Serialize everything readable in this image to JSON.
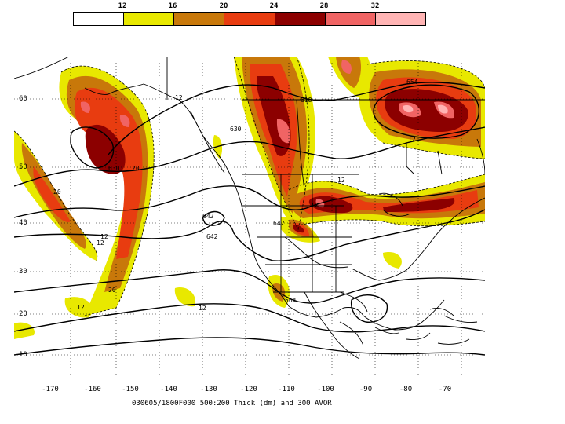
{
  "colorbar": {
    "labels": [
      "12",
      "16",
      "20",
      "24",
      "28",
      "32"
    ],
    "colors": [
      "#ffffff",
      "#e8e800",
      "#c8780a",
      "#e83c10",
      "#8c0000",
      "#f06464",
      "#ffb4b4"
    ]
  },
  "axes": {
    "lat_labels": [
      "60",
      "50",
      "40",
      "30",
      "20",
      "10"
    ],
    "lon_labels": [
      "-170",
      "-160",
      "-150",
      "-140",
      "-130",
      "-120",
      "-110",
      "-100",
      "-90",
      "-80",
      "-70"
    ]
  },
  "contour_labels": [
    "618",
    "630",
    "630",
    "642",
    "642",
    "642",
    "654",
    "564",
    "12",
    "12",
    "12",
    "12",
    "12",
    "12",
    "20",
    "20",
    "20",
    "12",
    "12"
  ],
  "caption": "030605/1800F000 500:200 Thick (dm) and 300 AVOR"
}
